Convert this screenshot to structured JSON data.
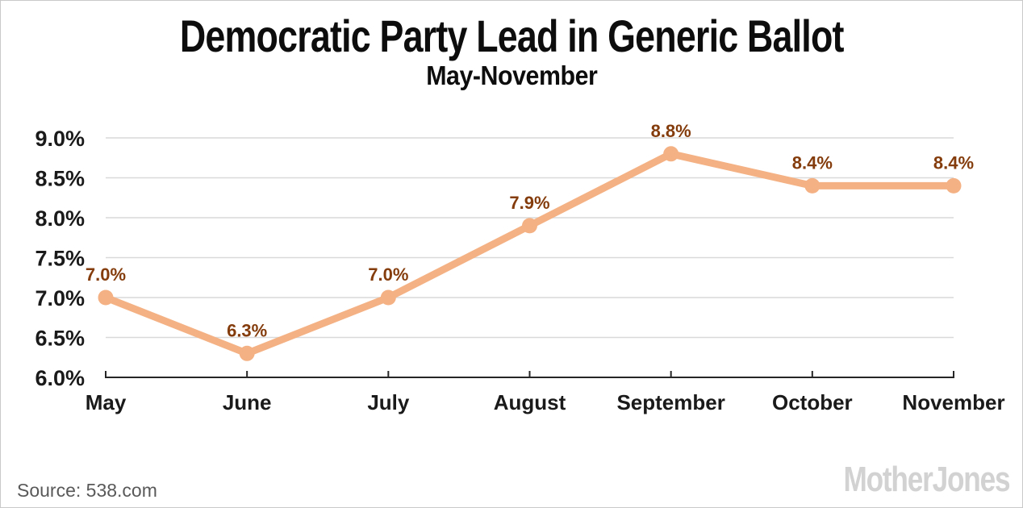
{
  "header": {
    "title": "Democratic Party Lead in Generic Ballot",
    "subtitle": "May-November"
  },
  "chart_data": {
    "type": "line",
    "title": "Democratic Party Lead in Generic Ballot",
    "subtitle": "May-November",
    "categories": [
      "May",
      "June",
      "July",
      "August",
      "September",
      "October",
      "November"
    ],
    "values": [
      7.0,
      6.3,
      7.0,
      7.9,
      8.8,
      8.4,
      8.4
    ],
    "point_labels": [
      "7.0%",
      "6.3%",
      "7.0%",
      "7.9%",
      "8.8%",
      "8.4%",
      "8.4%"
    ],
    "y_ticks": [
      {
        "value": 9.0,
        "label": "9.0%"
      },
      {
        "value": 8.5,
        "label": "8.5%"
      },
      {
        "value": 8.0,
        "label": "8.0%"
      },
      {
        "value": 7.5,
        "label": "7.5%"
      },
      {
        "value": 7.0,
        "label": "7.0%"
      },
      {
        "value": 6.5,
        "label": "6.5%"
      },
      {
        "value": 6.0,
        "label": "6.0%"
      }
    ],
    "ylim": [
      6.0,
      9.0
    ],
    "xlabel": "",
    "ylabel": "",
    "grid": "horizontal",
    "legend": "none",
    "colors": {
      "series": "#f4b183",
      "point_label": "#843c0c",
      "gridline": "#d9d9d9",
      "axis": "#262626",
      "tick_text": "#1a1a1a"
    }
  },
  "footer": {
    "source": "Source: 538.com",
    "logo": "MotherJones"
  }
}
